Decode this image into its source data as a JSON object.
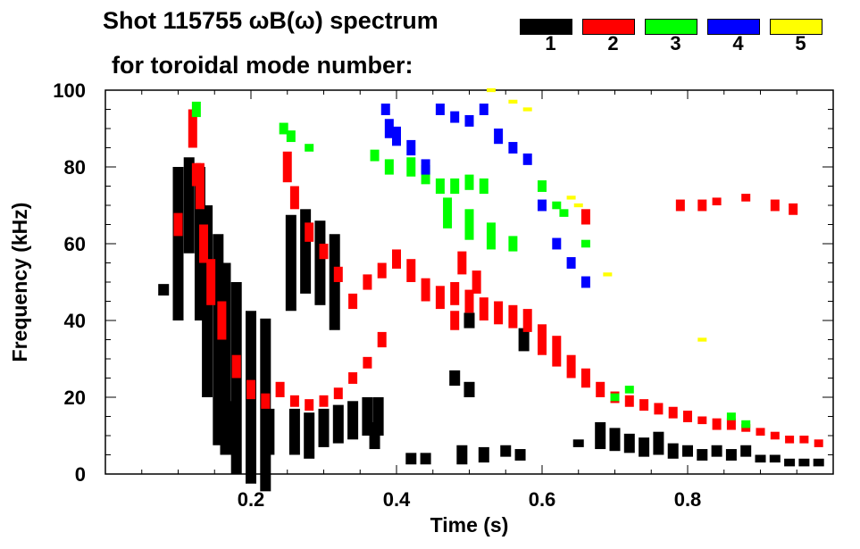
{
  "chart_data": {
    "type": "scatter",
    "title_line1": "Shot 115755 ωB(ω) spectrum",
    "title_line2": "for toroidal mode number:",
    "xlabel": "Time (s)",
    "ylabel": "Frequency (kHz)",
    "xlim": [
      0.0,
      1.0
    ],
    "ylim": [
      0,
      100
    ],
    "x_ticks": [
      {
        "value": 0.2,
        "label": "0.2"
      },
      {
        "value": 0.4,
        "label": "0.4"
      },
      {
        "value": 0.6,
        "label": "0.6"
      },
      {
        "value": 0.8,
        "label": "0.8"
      }
    ],
    "y_ticks": [
      {
        "value": 0,
        "label": "0"
      },
      {
        "value": 20,
        "label": "20"
      },
      {
        "value": 40,
        "label": "40"
      },
      {
        "value": 60,
        "label": "60"
      },
      {
        "value": 80,
        "label": "80"
      },
      {
        "value": 100,
        "label": "100"
      }
    ],
    "legend": [
      {
        "label": "1",
        "color": "#000000"
      },
      {
        "label": "2",
        "color": "#ff0000"
      },
      {
        "label": "3",
        "color": "#00ff00"
      },
      {
        "label": "4",
        "color": "#0000ff"
      },
      {
        "label": "5",
        "color": "#ffff00"
      }
    ],
    "series": [
      {
        "name": "1",
        "color": "#000000",
        "points": [
          [
            0.08,
            48,
            3
          ],
          [
            0.1,
            60,
            40
          ],
          [
            0.115,
            70,
            25
          ],
          [
            0.13,
            60,
            40
          ],
          [
            0.14,
            45,
            50
          ],
          [
            0.155,
            35,
            55
          ],
          [
            0.165,
            30,
            50
          ],
          [
            0.18,
            25,
            50
          ],
          [
            0.2,
            20,
            45
          ],
          [
            0.22,
            18,
            45
          ],
          [
            0.175,
            12,
            14
          ],
          [
            0.2,
            11,
            12
          ],
          [
            0.225,
            11,
            12
          ],
          [
            0.255,
            55,
            25
          ],
          [
            0.275,
            58,
            22
          ],
          [
            0.295,
            55,
            22
          ],
          [
            0.315,
            50,
            25
          ],
          [
            0.26,
            11,
            12
          ],
          [
            0.28,
            10,
            12
          ],
          [
            0.3,
            12,
            10
          ],
          [
            0.32,
            13,
            10
          ],
          [
            0.34,
            14,
            10
          ],
          [
            0.36,
            15,
            10
          ],
          [
            0.375,
            15,
            10
          ],
          [
            0.37,
            10,
            7
          ],
          [
            0.42,
            4,
            3
          ],
          [
            0.44,
            4,
            3
          ],
          [
            0.48,
            25,
            4
          ],
          [
            0.5,
            22,
            4
          ],
          [
            0.5,
            40,
            4
          ],
          [
            0.49,
            5,
            5
          ],
          [
            0.52,
            5,
            4
          ],
          [
            0.55,
            6,
            3
          ],
          [
            0.57,
            5,
            3
          ],
          [
            0.575,
            35,
            6
          ],
          [
            0.65,
            8,
            2
          ],
          [
            0.68,
            10,
            7
          ],
          [
            0.7,
            9,
            6
          ],
          [
            0.72,
            8,
            5
          ],
          [
            0.74,
            7,
            5
          ],
          [
            0.76,
            8,
            6
          ],
          [
            0.78,
            6,
            4
          ],
          [
            0.8,
            6,
            3
          ],
          [
            0.82,
            5,
            3
          ],
          [
            0.84,
            6,
            3
          ],
          [
            0.86,
            5,
            3
          ],
          [
            0.88,
            6,
            3
          ],
          [
            0.9,
            4,
            2
          ],
          [
            0.92,
            4,
            2
          ],
          [
            0.94,
            3,
            2
          ],
          [
            0.96,
            3,
            2
          ],
          [
            0.98,
            3,
            2
          ]
        ]
      },
      {
        "name": "2",
        "color": "#ff0000",
        "points": [
          [
            0.1,
            65,
            6
          ],
          [
            0.12,
            90,
            10
          ],
          [
            0.125,
            78,
            6
          ],
          [
            0.13,
            75,
            12
          ],
          [
            0.135,
            60,
            10
          ],
          [
            0.145,
            50,
            12
          ],
          [
            0.16,
            40,
            10
          ],
          [
            0.18,
            28,
            6
          ],
          [
            0.2,
            22,
            5
          ],
          [
            0.22,
            19,
            4
          ],
          [
            0.24,
            22,
            4
          ],
          [
            0.26,
            19,
            3
          ],
          [
            0.28,
            18,
            3
          ],
          [
            0.3,
            19,
            3
          ],
          [
            0.32,
            21,
            3
          ],
          [
            0.34,
            25,
            3
          ],
          [
            0.36,
            29,
            3
          ],
          [
            0.38,
            35,
            4
          ],
          [
            0.25,
            80,
            8
          ],
          [
            0.26,
            72,
            6
          ],
          [
            0.28,
            63,
            5
          ],
          [
            0.3,
            58,
            4
          ],
          [
            0.32,
            52,
            4
          ],
          [
            0.34,
            45,
            4
          ],
          [
            0.36,
            50,
            4
          ],
          [
            0.38,
            53,
            4
          ],
          [
            0.4,
            56,
            5
          ],
          [
            0.42,
            53,
            6
          ],
          [
            0.44,
            48,
            6
          ],
          [
            0.46,
            46,
            6
          ],
          [
            0.48,
            47,
            6
          ],
          [
            0.5,
            45,
            6
          ],
          [
            0.52,
            43,
            6
          ],
          [
            0.54,
            42,
            6
          ],
          [
            0.56,
            41,
            6
          ],
          [
            0.58,
            40,
            6
          ],
          [
            0.6,
            35,
            8
          ],
          [
            0.62,
            32,
            8
          ],
          [
            0.64,
            28,
            6
          ],
          [
            0.66,
            25,
            5
          ],
          [
            0.68,
            22,
            4
          ],
          [
            0.7,
            20,
            3
          ],
          [
            0.72,
            19,
            3
          ],
          [
            0.74,
            18,
            3
          ],
          [
            0.76,
            17,
            3
          ],
          [
            0.78,
            16,
            3
          ],
          [
            0.8,
            15,
            3
          ],
          [
            0.82,
            14,
            2
          ],
          [
            0.84,
            13,
            3
          ],
          [
            0.86,
            13,
            3
          ],
          [
            0.88,
            12,
            2
          ],
          [
            0.9,
            11,
            2
          ],
          [
            0.92,
            10,
            2
          ],
          [
            0.94,
            9,
            2
          ],
          [
            0.96,
            9,
            2
          ],
          [
            0.98,
            8,
            2
          ],
          [
            0.66,
            67,
            4
          ],
          [
            0.79,
            70,
            3
          ],
          [
            0.82,
            70,
            3
          ],
          [
            0.84,
            71,
            2
          ],
          [
            0.88,
            72,
            2
          ],
          [
            0.92,
            70,
            3
          ],
          [
            0.945,
            69,
            3
          ],
          [
            0.49,
            55,
            6
          ],
          [
            0.51,
            50,
            6
          ],
          [
            0.48,
            40,
            5
          ]
        ]
      },
      {
        "name": "3",
        "color": "#00ff00",
        "points": [
          [
            0.125,
            95,
            4
          ],
          [
            0.245,
            90,
            3
          ],
          [
            0.255,
            88,
            3
          ],
          [
            0.28,
            85,
            2
          ],
          [
            0.37,
            83,
            3
          ],
          [
            0.39,
            80,
            4
          ],
          [
            0.42,
            80,
            5
          ],
          [
            0.44,
            78,
            5
          ],
          [
            0.46,
            75,
            4
          ],
          [
            0.48,
            75,
            4
          ],
          [
            0.5,
            76,
            4
          ],
          [
            0.52,
            75,
            4
          ],
          [
            0.47,
            68,
            8
          ],
          [
            0.5,
            65,
            8
          ],
          [
            0.53,
            62,
            7
          ],
          [
            0.56,
            60,
            4
          ],
          [
            0.6,
            75,
            3
          ],
          [
            0.62,
            70,
            2
          ],
          [
            0.63,
            68,
            2
          ],
          [
            0.66,
            60,
            2
          ],
          [
            0.7,
            20,
            2
          ],
          [
            0.72,
            22,
            2
          ],
          [
            0.86,
            15,
            2
          ],
          [
            0.88,
            13,
            2
          ]
        ]
      },
      {
        "name": "4",
        "color": "#0000ff",
        "points": [
          [
            0.385,
            95,
            3
          ],
          [
            0.39,
            90,
            5
          ],
          [
            0.4,
            88,
            5
          ],
          [
            0.42,
            85,
            4
          ],
          [
            0.44,
            80,
            4
          ],
          [
            0.46,
            95,
            3
          ],
          [
            0.48,
            93,
            3
          ],
          [
            0.5,
            92,
            3
          ],
          [
            0.52,
            95,
            3
          ],
          [
            0.54,
            88,
            4
          ],
          [
            0.56,
            85,
            3
          ],
          [
            0.58,
            82,
            3
          ],
          [
            0.6,
            70,
            3
          ],
          [
            0.62,
            60,
            3
          ],
          [
            0.64,
            55,
            3
          ],
          [
            0.66,
            50,
            3
          ]
        ]
      },
      {
        "name": "5",
        "color": "#ffff00",
        "points": [
          [
            0.53,
            100,
            1
          ],
          [
            0.56,
            97,
            1
          ],
          [
            0.58,
            95,
            1
          ],
          [
            0.64,
            72,
            1
          ],
          [
            0.65,
            70,
            1
          ],
          [
            0.69,
            52,
            1
          ],
          [
            0.82,
            35,
            1
          ]
        ]
      }
    ]
  }
}
